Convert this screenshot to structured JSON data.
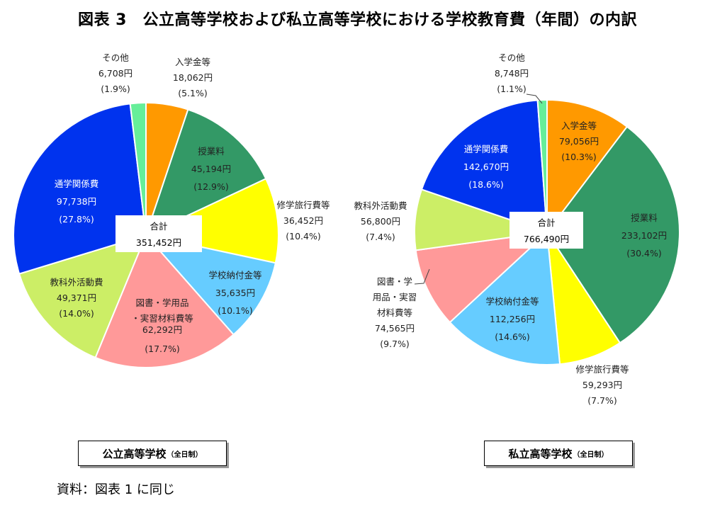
{
  "title": "図表 3　公立高等学校および私立高等学校における学校教育費（年間）の内訳",
  "source": "資料：図表 1 に同じ",
  "chart_data": [
    {
      "type": "pie",
      "name": "公立高等学校",
      "name_sub": "（全日制）",
      "total_label": "合計",
      "total_value": "351,452円",
      "slices": [
        {
          "label": "入学金等",
          "value": "18,062円",
          "percent": "(5.1%)",
          "numeric": 18062,
          "color": "#ff9900"
        },
        {
          "label": "授業料",
          "value": "45,194円",
          "percent": "(12.9%)",
          "numeric": 45194,
          "color": "#339966"
        },
        {
          "label": "修学旅行費等",
          "value": "36,452円",
          "percent": "(10.4%)",
          "numeric": 36452,
          "color": "#ffff00"
        },
        {
          "label": "学校納付金等",
          "value": "35,635円",
          "percent": "(10.1%)",
          "numeric": 35635,
          "color": "#66ccff"
        },
        {
          "label": "図書・学用品・実習材料費等",
          "value": "62,292円",
          "percent": "(17.7%)",
          "numeric": 62292,
          "color": "#ff9999"
        },
        {
          "label": "教科外活動費",
          "value": "49,371円",
          "percent": "(14.0%)",
          "numeric": 49371,
          "color": "#ccee66"
        },
        {
          "label": "通学関係費",
          "value": "97,738円",
          "percent": "(27.8%)",
          "numeric": 97738,
          "color": "#0033ee"
        },
        {
          "label": "その他",
          "value": "6,708円",
          "percent": "(1.9%)",
          "numeric": 6708,
          "color": "#66ee99"
        }
      ]
    },
    {
      "type": "pie",
      "name": "私立高等学校",
      "name_sub": "（全日制）",
      "total_label": "合計",
      "total_value": "766,490円",
      "slices": [
        {
          "label": "入学金等",
          "value": "79,056円",
          "percent": "(10.3%)",
          "numeric": 79056,
          "color": "#ff9900"
        },
        {
          "label": "授業料",
          "value": "233,102円",
          "percent": "(30.4%)",
          "numeric": 233102,
          "color": "#339966"
        },
        {
          "label": "修学旅行費等",
          "value": "59,293円",
          "percent": "(7.7%)",
          "numeric": 59293,
          "color": "#ffff00"
        },
        {
          "label": "学校納付金等",
          "value": "112,256円",
          "percent": "(14.6%)",
          "numeric": 112256,
          "color": "#66ccff"
        },
        {
          "label": "図書・学用品・実習材料費等",
          "value": "74,565円",
          "percent": "(9.7%)",
          "numeric": 74565,
          "color": "#ff9999"
        },
        {
          "label": "教科外活動費",
          "value": "56,800円",
          "percent": "(7.4%)",
          "numeric": 56800,
          "color": "#ccee66"
        },
        {
          "label": "通学関係費",
          "value": "142,670円",
          "percent": "(18.6%)",
          "numeric": 142670,
          "color": "#0033ee"
        },
        {
          "label": "その他",
          "value": "8,748円",
          "percent": "(1.1%)",
          "numeric": 8748,
          "color": "#66ee99"
        }
      ]
    }
  ]
}
